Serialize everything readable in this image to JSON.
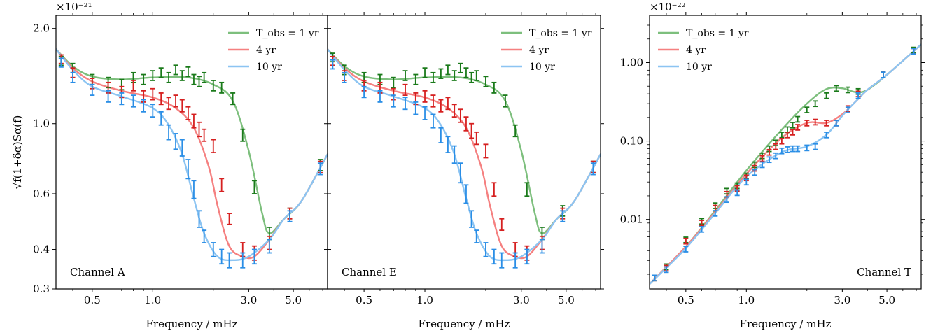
{
  "colors": {
    "green_line": "#7dbf7d",
    "red_line": "#f58080",
    "blue_line": "#8cc4f2",
    "green_err": "#1a7a1a",
    "red_err": "#d62020",
    "blue_err": "#2a8ee6",
    "tail": "#7a86a8"
  },
  "chart_data": [
    {
      "type": "line",
      "panel": "A",
      "channel_label": "Channel A",
      "xlabel": "Frequency / mHz",
      "ylabel": "√f(1+δα)Sα(f)",
      "scale_label": "×10⁻²¹",
      "x_scale": "log",
      "y_scale": "log",
      "xlim": [
        0.33,
        7.4
      ],
      "ylim": [
        0.3,
        2.2
      ],
      "x_ticks": [
        0.5,
        1.0,
        3.0,
        5.0
      ],
      "x_tick_labels": [
        "0.5",
        "1.0",
        "3.0",
        "5.0"
      ],
      "y_ticks": [
        0.3,
        0.4,
        0.6,
        1.0,
        2.0
      ],
      "y_tick_labels": [
        "0.3",
        "0.4",
        "0.6",
        "1.0",
        "2.0"
      ],
      "legend": [
        "T_obs = 1 yr",
        "4 yr",
        "10 yr"
      ],
      "legend_position": "top-right",
      "series": [
        {
          "name": "T_obs = 1 yr",
          "color_key": "green",
          "x": [
            0.33,
            0.4,
            0.5,
            0.7,
            1.0,
            1.5,
            2.0,
            2.5,
            3.0,
            3.5,
            3.8,
            4.5,
            5.5,
            7.4
          ],
          "y": [
            1.72,
            1.52,
            1.41,
            1.38,
            1.4,
            1.4,
            1.33,
            1.18,
            0.82,
            0.52,
            0.45,
            0.5,
            0.57,
            0.8
          ]
        },
        {
          "name": "4 yr",
          "color_key": "red",
          "x": [
            0.33,
            0.4,
            0.5,
            0.7,
            1.0,
            1.3,
            1.6,
            1.9,
            2.1,
            2.4,
            2.8,
            3.2,
            3.8,
            4.5,
            5.5,
            7.4
          ],
          "y": [
            1.72,
            1.5,
            1.36,
            1.27,
            1.21,
            1.12,
            0.97,
            0.73,
            0.55,
            0.41,
            0.38,
            0.38,
            0.43,
            0.5,
            0.57,
            0.8
          ]
        },
        {
          "name": "10 yr",
          "color_key": "blue",
          "x": [
            0.33,
            0.4,
            0.5,
            0.7,
            1.0,
            1.2,
            1.4,
            1.6,
            1.8,
            2.1,
            2.5,
            3.0,
            3.8,
            4.5,
            5.5,
            7.4
          ],
          "y": [
            1.72,
            1.48,
            1.31,
            1.22,
            1.12,
            0.99,
            0.8,
            0.58,
            0.45,
            0.38,
            0.37,
            0.38,
            0.43,
            0.5,
            0.57,
            0.8
          ]
        }
      ],
      "errorbars": [
        {
          "series": "T_obs = 1 yr",
          "x": [
            0.35,
            0.4,
            0.5,
            0.6,
            0.7,
            0.8,
            0.9,
            1.0,
            1.1,
            1.2,
            1.3,
            1.4,
            1.5,
            1.6,
            1.7,
            1.8,
            2.0,
            2.2,
            2.5,
            2.8,
            3.2,
            3.8,
            4.8,
            6.8
          ],
          "y": [
            1.58,
            1.5,
            1.38,
            1.35,
            1.33,
            1.4,
            1.38,
            1.42,
            1.45,
            1.4,
            1.48,
            1.42,
            1.46,
            1.38,
            1.36,
            1.4,
            1.32,
            1.3,
            1.2,
            0.92,
            0.63,
            0.45,
            0.52,
            0.74
          ],
          "err": [
            0.05,
            0.05,
            0.05,
            0.05,
            0.05,
            0.05,
            0.05,
            0.05,
            0.05,
            0.05,
            0.05,
            0.05,
            0.05,
            0.05,
            0.05,
            0.05,
            0.05,
            0.05,
            0.05,
            0.04,
            0.03,
            0.02,
            0.02,
            0.03
          ]
        },
        {
          "series": "4 yr",
          "x": [
            0.35,
            0.4,
            0.5,
            0.6,
            0.7,
            0.8,
            0.9,
            1.0,
            1.1,
            1.2,
            1.3,
            1.4,
            1.5,
            1.6,
            1.7,
            1.8,
            2.0,
            2.2,
            2.4,
            2.8,
            3.2,
            3.8,
            4.8,
            6.8
          ],
          "y": [
            1.6,
            1.45,
            1.34,
            1.3,
            1.26,
            1.32,
            1.22,
            1.24,
            1.2,
            1.16,
            1.18,
            1.14,
            1.08,
            1.02,
            0.96,
            0.92,
            0.85,
            0.64,
            0.5,
            0.4,
            0.39,
            0.42,
            0.52,
            0.73
          ],
          "err": [
            0.05,
            0.05,
            0.05,
            0.05,
            0.05,
            0.05,
            0.05,
            0.05,
            0.05,
            0.05,
            0.05,
            0.05,
            0.05,
            0.05,
            0.05,
            0.04,
            0.04,
            0.03,
            0.02,
            0.02,
            0.02,
            0.02,
            0.02,
            0.03
          ]
        },
        {
          "series": "10 yr",
          "x": [
            0.35,
            0.4,
            0.5,
            0.6,
            0.7,
            0.8,
            0.9,
            1.0,
            1.1,
            1.2,
            1.3,
            1.4,
            1.5,
            1.6,
            1.7,
            1.8,
            2.0,
            2.2,
            2.4,
            2.8,
            3.2,
            3.8,
            4.8,
            6.8
          ],
          "y": [
            1.56,
            1.4,
            1.28,
            1.22,
            1.2,
            1.18,
            1.14,
            1.1,
            1.04,
            0.94,
            0.88,
            0.84,
            0.72,
            0.62,
            0.5,
            0.44,
            0.4,
            0.38,
            0.37,
            0.37,
            0.38,
            0.41,
            0.51,
            0.72
          ],
          "err": [
            0.05,
            0.05,
            0.05,
            0.05,
            0.05,
            0.05,
            0.05,
            0.05,
            0.05,
            0.05,
            0.05,
            0.05,
            0.05,
            0.04,
            0.03,
            0.02,
            0.02,
            0.02,
            0.02,
            0.02,
            0.02,
            0.02,
            0.02,
            0.03
          ]
        }
      ]
    },
    {
      "type": "line",
      "panel": "E",
      "channel_label": "Channel E",
      "xlabel": "Frequency / mHz",
      "x_scale": "log",
      "y_scale": "log",
      "xlim": [
        0.33,
        7.4
      ],
      "ylim": [
        0.3,
        2.2
      ],
      "x_ticks": [
        0.5,
        1.0,
        3.0,
        5.0
      ],
      "x_tick_labels": [
        "0.5",
        "1.0",
        "3.0",
        "5.0"
      ],
      "y_ticks": [
        0.3,
        0.4,
        0.6,
        1.0,
        2.0
      ],
      "legend": [
        "T_obs = 1 yr",
        "4 yr",
        "10 yr"
      ],
      "legend_position": "top-right",
      "series": [
        {
          "name": "T_obs = 1 yr",
          "color_key": "green",
          "x": [
            0.33,
            0.4,
            0.5,
            0.7,
            1.0,
            1.5,
            2.0,
            2.5,
            3.0,
            3.5,
            3.8,
            4.5,
            5.5,
            7.4
          ],
          "y": [
            1.72,
            1.52,
            1.41,
            1.38,
            1.4,
            1.4,
            1.33,
            1.18,
            0.82,
            0.52,
            0.45,
            0.5,
            0.57,
            0.8
          ]
        },
        {
          "name": "4 yr",
          "color_key": "red",
          "x": [
            0.33,
            0.4,
            0.5,
            0.7,
            1.0,
            1.3,
            1.6,
            1.9,
            2.1,
            2.4,
            2.8,
            3.2,
            3.8,
            4.5,
            5.5,
            7.4
          ],
          "y": [
            1.72,
            1.5,
            1.36,
            1.27,
            1.21,
            1.12,
            0.97,
            0.73,
            0.55,
            0.41,
            0.38,
            0.38,
            0.43,
            0.5,
            0.57,
            0.8
          ]
        },
        {
          "name": "10 yr",
          "color_key": "blue",
          "x": [
            0.33,
            0.4,
            0.5,
            0.7,
            1.0,
            1.2,
            1.4,
            1.6,
            1.8,
            2.1,
            2.5,
            3.0,
            3.8,
            4.5,
            5.5,
            7.4
          ],
          "y": [
            1.72,
            1.48,
            1.31,
            1.22,
            1.12,
            0.99,
            0.8,
            0.58,
            0.45,
            0.38,
            0.37,
            0.38,
            0.43,
            0.5,
            0.57,
            0.8
          ]
        }
      ],
      "errorbars": [
        {
          "series": "T_obs = 1 yr",
          "x": [
            0.35,
            0.4,
            0.5,
            0.6,
            0.7,
            0.8,
            0.9,
            1.0,
            1.1,
            1.2,
            1.3,
            1.4,
            1.5,
            1.6,
            1.7,
            1.8,
            2.0,
            2.2,
            2.5,
            2.8,
            3.2,
            3.8,
            4.8,
            6.8
          ],
          "y": [
            1.62,
            1.48,
            1.4,
            1.38,
            1.35,
            1.42,
            1.38,
            1.45,
            1.4,
            1.44,
            1.48,
            1.42,
            1.5,
            1.45,
            1.4,
            1.42,
            1.36,
            1.3,
            1.18,
            0.95,
            0.62,
            0.45,
            0.53,
            0.73
          ],
          "err": [
            0.05,
            0.05,
            0.05,
            0.05,
            0.05,
            0.05,
            0.05,
            0.05,
            0.05,
            0.05,
            0.05,
            0.05,
            0.05,
            0.05,
            0.05,
            0.05,
            0.05,
            0.05,
            0.05,
            0.04,
            0.03,
            0.02,
            0.02,
            0.03
          ]
        },
        {
          "series": "4 yr",
          "x": [
            0.35,
            0.4,
            0.5,
            0.6,
            0.7,
            0.8,
            0.9,
            1.0,
            1.1,
            1.2,
            1.3,
            1.4,
            1.5,
            1.6,
            1.7,
            1.8,
            2.0,
            2.2,
            2.4,
            2.8,
            3.2,
            3.8,
            4.8,
            6.8
          ],
          "y": [
            1.58,
            1.42,
            1.32,
            1.3,
            1.24,
            1.28,
            1.2,
            1.22,
            1.18,
            1.14,
            1.16,
            1.1,
            1.06,
            1.0,
            0.95,
            0.9,
            0.82,
            0.62,
            0.48,
            0.4,
            0.39,
            0.42,
            0.52,
            0.73
          ],
          "err": [
            0.05,
            0.05,
            0.05,
            0.05,
            0.05,
            0.05,
            0.05,
            0.05,
            0.05,
            0.05,
            0.05,
            0.05,
            0.05,
            0.05,
            0.05,
            0.04,
            0.04,
            0.03,
            0.02,
            0.02,
            0.02,
            0.02,
            0.02,
            0.03
          ]
        },
        {
          "series": "10 yr",
          "x": [
            0.35,
            0.4,
            0.5,
            0.6,
            0.7,
            0.8,
            0.9,
            1.0,
            1.1,
            1.2,
            1.3,
            1.4,
            1.5,
            1.6,
            1.7,
            1.8,
            2.0,
            2.2,
            2.4,
            2.8,
            3.2,
            3.8,
            4.8,
            6.8
          ],
          "y": [
            1.54,
            1.4,
            1.26,
            1.22,
            1.18,
            1.16,
            1.12,
            1.08,
            1.02,
            0.92,
            0.86,
            0.8,
            0.7,
            0.6,
            0.5,
            0.44,
            0.4,
            0.38,
            0.37,
            0.37,
            0.38,
            0.41,
            0.51,
            0.72
          ],
          "err": [
            0.05,
            0.05,
            0.05,
            0.05,
            0.05,
            0.05,
            0.05,
            0.05,
            0.05,
            0.05,
            0.05,
            0.05,
            0.05,
            0.04,
            0.03,
            0.02,
            0.02,
            0.02,
            0.02,
            0.02,
            0.02,
            0.02,
            0.02,
            0.03
          ]
        }
      ]
    },
    {
      "type": "line",
      "panel": "T",
      "channel_label": "Channel T",
      "xlabel": "Frequency / mHz",
      "scale_label": "×10⁻²²",
      "x_scale": "log",
      "y_scale": "log",
      "xlim": [
        0.33,
        7.4
      ],
      "ylim": [
        0.0013,
        4.0
      ],
      "x_ticks": [
        0.5,
        1.0,
        3.0,
        5.0
      ],
      "x_tick_labels": [
        "0.5",
        "1.0",
        "3.0",
        "5.0"
      ],
      "y_ticks": [
        0.01,
        0.1,
        1.0
      ],
      "y_tick_labels": [
        "0.01",
        "0.10",
        "1.00"
      ],
      "legend": [
        "T_obs = 1 yr",
        "4 yr",
        "10 yr"
      ],
      "legend_position": "top-left",
      "series": [
        {
          "name": "T_obs = 1 yr",
          "color_key": "green",
          "x": [
            0.33,
            0.5,
            0.7,
            1.0,
            1.5,
            2.0,
            2.5,
            3.0,
            3.5,
            4.0,
            5.0,
            7.4
          ],
          "y": [
            0.0015,
            0.0045,
            0.013,
            0.042,
            0.14,
            0.3,
            0.46,
            0.47,
            0.42,
            0.45,
            0.7,
            1.7
          ]
        },
        {
          "name": "4 yr",
          "color_key": "red",
          "x": [
            0.33,
            0.5,
            0.7,
            1.0,
            1.5,
            2.0,
            2.5,
            3.0,
            3.5,
            4.0,
            5.0,
            7.4
          ],
          "y": [
            0.0015,
            0.0045,
            0.0125,
            0.038,
            0.11,
            0.17,
            0.17,
            0.22,
            0.32,
            0.45,
            0.7,
            1.7
          ]
        },
        {
          "name": "10 yr",
          "color_key": "blue",
          "x": [
            0.33,
            0.5,
            0.7,
            1.0,
            1.5,
            2.0,
            2.5,
            3.0,
            3.5,
            4.0,
            5.0,
            7.4
          ],
          "y": [
            0.0015,
            0.0043,
            0.012,
            0.035,
            0.072,
            0.085,
            0.12,
            0.21,
            0.32,
            0.45,
            0.7,
            1.7
          ]
        }
      ],
      "errorbars": [
        {
          "series": "T_obs = 1 yr",
          "x": [
            0.35,
            0.4,
            0.5,
            0.6,
            0.7,
            0.8,
            0.9,
            1.0,
            1.1,
            1.2,
            1.3,
            1.4,
            1.5,
            1.6,
            1.7,
            1.8,
            2.0,
            2.2,
            2.5,
            2.8,
            3.2,
            3.6,
            4.8,
            6.8
          ],
          "y": [
            0.0018,
            0.0025,
            0.0055,
            0.0095,
            0.015,
            0.023,
            0.027,
            0.036,
            0.05,
            0.065,
            0.08,
            0.095,
            0.12,
            0.14,
            0.16,
            0.19,
            0.25,
            0.3,
            0.38,
            0.47,
            0.45,
            0.43,
            0.7,
            1.45
          ],
          "rel_err": 0.08
        },
        {
          "series": "4 yr",
          "x": [
            0.35,
            0.4,
            0.5,
            0.6,
            0.7,
            0.8,
            0.9,
            1.0,
            1.1,
            1.2,
            1.3,
            1.4,
            1.5,
            1.6,
            1.7,
            1.8,
            2.0,
            2.2,
            2.5,
            2.8,
            3.2,
            3.6,
            4.8,
            6.8
          ],
          "y": [
            0.0018,
            0.0024,
            0.0053,
            0.009,
            0.014,
            0.021,
            0.025,
            0.034,
            0.045,
            0.06,
            0.072,
            0.085,
            0.1,
            0.12,
            0.13,
            0.15,
            0.17,
            0.175,
            0.17,
            0.17,
            0.26,
            0.4,
            0.7,
            1.4
          ],
          "rel_err": 0.08
        },
        {
          "series": "10 yr",
          "x": [
            0.35,
            0.4,
            0.5,
            0.6,
            0.7,
            0.8,
            0.9,
            1.0,
            1.1,
            1.2,
            1.3,
            1.4,
            1.5,
            1.6,
            1.7,
            1.8,
            2.0,
            2.2,
            2.5,
            2.8,
            3.2,
            3.6,
            4.8,
            6.8
          ],
          "y": [
            0.0018,
            0.0023,
            0.0042,
            0.0075,
            0.012,
            0.018,
            0.022,
            0.03,
            0.04,
            0.05,
            0.058,
            0.065,
            0.075,
            0.078,
            0.08,
            0.08,
            0.082,
            0.085,
            0.12,
            0.17,
            0.25,
            0.38,
            0.7,
            1.4
          ],
          "rel_err": 0.08
        }
      ]
    }
  ]
}
